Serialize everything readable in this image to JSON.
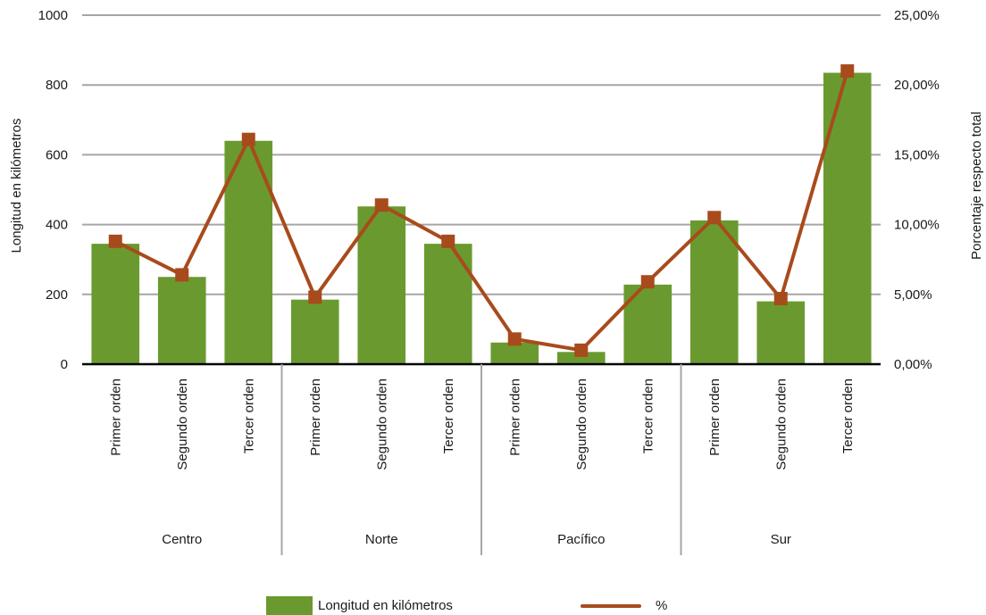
{
  "chart_data": {
    "type": "bar",
    "ylabel": "Longitud en kilómetros",
    "y2label": "Porcentaje respecto total",
    "ylim": [
      0,
      1000
    ],
    "y2lim": [
      0,
      25
    ],
    "yticks": [
      "0",
      "200",
      "400",
      "600",
      "800",
      "1000"
    ],
    "y2ticks": [
      "0,00%",
      "5,00%",
      "10,00%",
      "15,00%",
      "20,00%",
      "25,00%"
    ],
    "grid": true,
    "legend_position": "bottom",
    "groups": [
      {
        "name": "Centro",
        "categories": [
          "Primer orden",
          "Segundo orden",
          "Tercer orden"
        ]
      },
      {
        "name": "Norte",
        "categories": [
          "Primer orden",
          "Segundo orden",
          "Tercer orden"
        ]
      },
      {
        "name": "Pacífico",
        "categories": [
          "Primer orden",
          "Segundo orden",
          "Tercer orden"
        ]
      },
      {
        "name": "Sur",
        "categories": [
          "Primer orden",
          "Segundo orden",
          "Tercer orden"
        ]
      }
    ],
    "series": [
      {
        "name": "Longitud en kilómetros",
        "kind": "bar",
        "axis": "left",
        "color": "#6a9a2f",
        "values": [
          345,
          250,
          640,
          185,
          452,
          345,
          62,
          35,
          228,
          412,
          180,
          835
        ]
      },
      {
        "name": "%",
        "kind": "line",
        "axis": "right",
        "color": "#a84b1c",
        "values": [
          8.8,
          6.4,
          16.1,
          4.8,
          11.4,
          8.8,
          1.8,
          1.0,
          5.9,
          10.5,
          4.7,
          21.0
        ]
      }
    ]
  }
}
